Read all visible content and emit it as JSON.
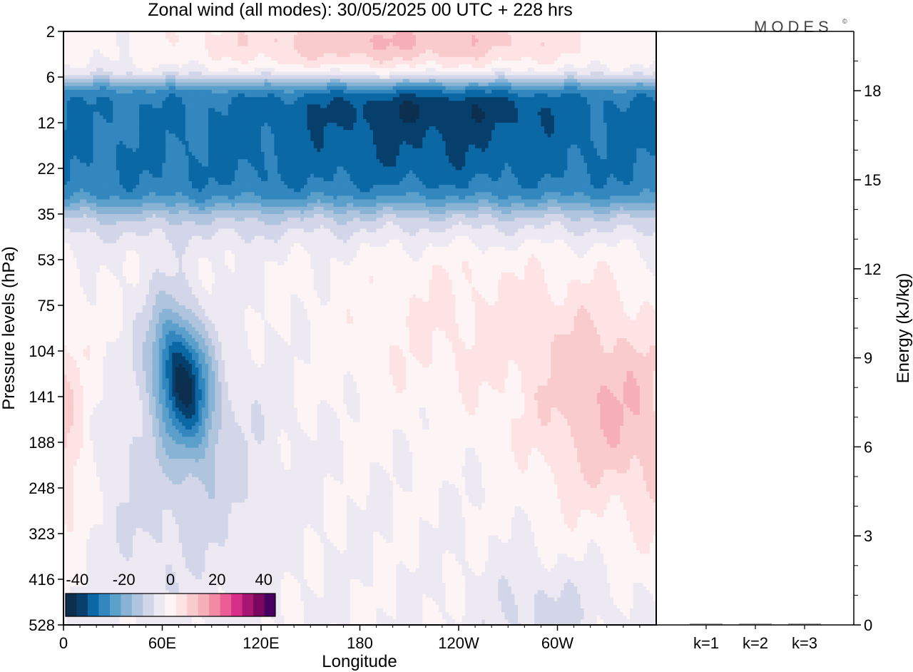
{
  "title": "Zonal wind (all modes):  30/05/2025  00 UTC  + 228 hrs",
  "logo_text": "MODES",
  "logo_mark": "©",
  "chart_data": [
    {
      "type": "heatmap",
      "variable": "Zonal wind",
      "xlabel": "Longitude",
      "ylabel": "Pressure levels (hPa)",
      "x_ticks": [
        "0",
        "60E",
        "120E",
        "180",
        "120W",
        "60W"
      ],
      "x_values": [
        0,
        60,
        120,
        180,
        240,
        300
      ],
      "xlim": [
        0,
        360
      ],
      "y_ticks": [
        "2",
        "6",
        "12",
        "22",
        "35",
        "53",
        "75",
        "104",
        "141",
        "188",
        "248",
        "323",
        "416",
        "528"
      ],
      "y_scale": "reversed, nonlinear (model levels)",
      "colorbar": {
        "tick_labels": [
          "-40",
          "-20",
          "0",
          "20",
          "40"
        ],
        "tick_values": [
          -40,
          -20,
          0,
          20,
          40
        ],
        "range": [
          -45,
          45
        ],
        "step": 5,
        "colors": [
          "#0d2f4f",
          "#073f6c",
          "#0b68a5",
          "#3387bf",
          "#5b9fcb",
          "#88b3d5",
          "#afc4dd",
          "#d3d6e8",
          "#ece9f2",
          "#fdf4f5",
          "#fde3e3",
          "#f9cbcd",
          "#f6aeb8",
          "#f28aa4",
          "#eb5d96",
          "#d52f89",
          "#a81572",
          "#7a075f",
          "#470061"
        ]
      },
      "features": [
        {
          "name": "strong easterly band",
          "pressure_hPa": [
            6,
            25
          ],
          "u_ms": -30
        },
        {
          "name": "easterly core",
          "longitude": "100W-160W",
          "pressure_hPa": 10,
          "u_ms": -40
        },
        {
          "name": "westerlies aloft",
          "pressure_hPa": [
            2,
            4
          ],
          "u_ms": 15
        },
        {
          "name": "tropopause easterly jet",
          "longitude": "80E",
          "pressure_hPa": 125,
          "u_ms": -35
        },
        {
          "name": "westerly maximum",
          "longitude": "20W-60W",
          "pressure_hPa": 150,
          "u_ms": 15
        }
      ]
    },
    {
      "type": "bar",
      "ylabel": "Energy (kJ/kg)",
      "categories": [
        "k=1",
        "k=2",
        "k=3"
      ],
      "values": [
        0.02,
        0.01,
        0.01
      ],
      "ylim": [
        0,
        20
      ],
      "y_ticks": [
        "0",
        "3",
        "6",
        "9",
        "12",
        "15",
        "18"
      ],
      "y_tick_values": [
        0,
        3,
        6,
        9,
        12,
        15,
        18
      ]
    }
  ]
}
